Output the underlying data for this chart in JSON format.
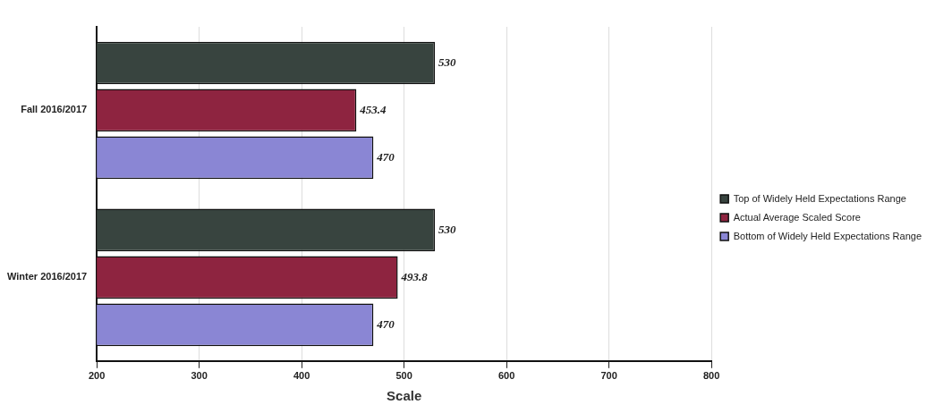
{
  "chart_data": {
    "type": "bar",
    "orientation": "horizontal",
    "xlabel": "Scale",
    "categories": [
      "Fall 2016/2017",
      "Winter 2016/2017"
    ],
    "series": [
      {
        "name": "Top of Widely Held Expectations Range",
        "color": "#38443f",
        "values": [
          530,
          530
        ]
      },
      {
        "name": "Actual Average Scaled Score",
        "color": "#8e2440",
        "values": [
          453.4,
          493.8
        ]
      },
      {
        "name": "Bottom of Widely Held Expectations Range",
        "color": "#8a86d4",
        "values": [
          470,
          470
        ]
      }
    ],
    "xlim": [
      200,
      800
    ],
    "xticks": [
      200,
      300,
      400,
      500,
      600,
      700,
      800
    ],
    "grid": "x",
    "legend": "right",
    "data_labels": true
  }
}
